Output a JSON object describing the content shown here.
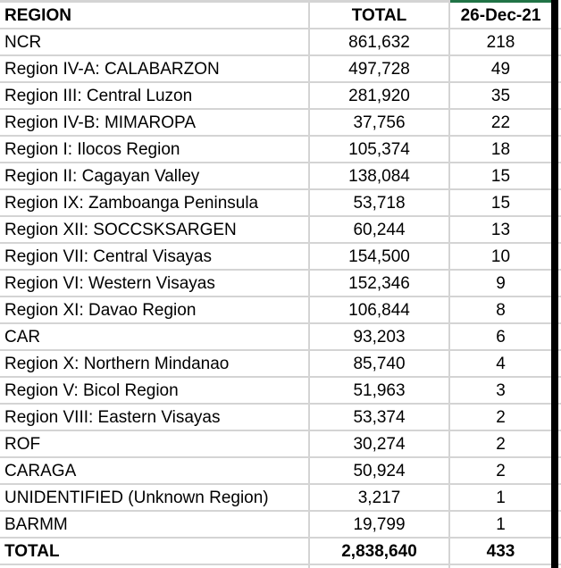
{
  "table": {
    "headers": {
      "region": "REGION",
      "total": "TOTAL",
      "date": "26-Dec-21"
    },
    "rows": [
      {
        "region": "NCR",
        "total": "861,632",
        "new_cases": "218"
      },
      {
        "region": "Region IV-A: CALABARZON",
        "total": "497,728",
        "new_cases": "49"
      },
      {
        "region": "Region III: Central Luzon",
        "total": "281,920",
        "new_cases": "35"
      },
      {
        "region": "Region IV-B: MIMAROPA",
        "total": "37,756",
        "new_cases": "22"
      },
      {
        "region": "Region I: Ilocos Region",
        "total": "105,374",
        "new_cases": "18"
      },
      {
        "region": "Region II: Cagayan Valley",
        "total": "138,084",
        "new_cases": "15"
      },
      {
        "region": "Region IX: Zamboanga Peninsula",
        "total": "53,718",
        "new_cases": "15"
      },
      {
        "region": "Region XII: SOCCSKSARGEN",
        "total": "60,244",
        "new_cases": "13"
      },
      {
        "region": "Region VII: Central Visayas",
        "total": "154,500",
        "new_cases": "10"
      },
      {
        "region": "Region VI: Western Visayas",
        "total": "152,346",
        "new_cases": "9"
      },
      {
        "region": "Region XI: Davao Region",
        "total": "106,844",
        "new_cases": "8"
      },
      {
        "region": "CAR",
        "total": "93,203",
        "new_cases": "6"
      },
      {
        "region": "Region X: Northern Mindanao",
        "total": "85,740",
        "new_cases": "4"
      },
      {
        "region": "Region V: Bicol Region",
        "total": "51,963",
        "new_cases": "3"
      },
      {
        "region": "Region VIII: Eastern Visayas",
        "total": "53,374",
        "new_cases": "2"
      },
      {
        "region": "ROF",
        "total": "30,274",
        "new_cases": "2"
      },
      {
        "region": "CARAGA",
        "total": "50,924",
        "new_cases": "2"
      },
      {
        "region": "UNIDENTIFIED (Unknown Region)",
        "total": "3,217",
        "new_cases": "1"
      },
      {
        "region": "BARMM",
        "total": "19,799",
        "new_cases": "1"
      }
    ],
    "total_row": {
      "region": "TOTAL",
      "total": "2,838,640",
      "new_cases": "433"
    }
  },
  "colors": {
    "selection_green": "#217346",
    "gridline": "#d4d4d4",
    "edge_bar": "#000000"
  }
}
